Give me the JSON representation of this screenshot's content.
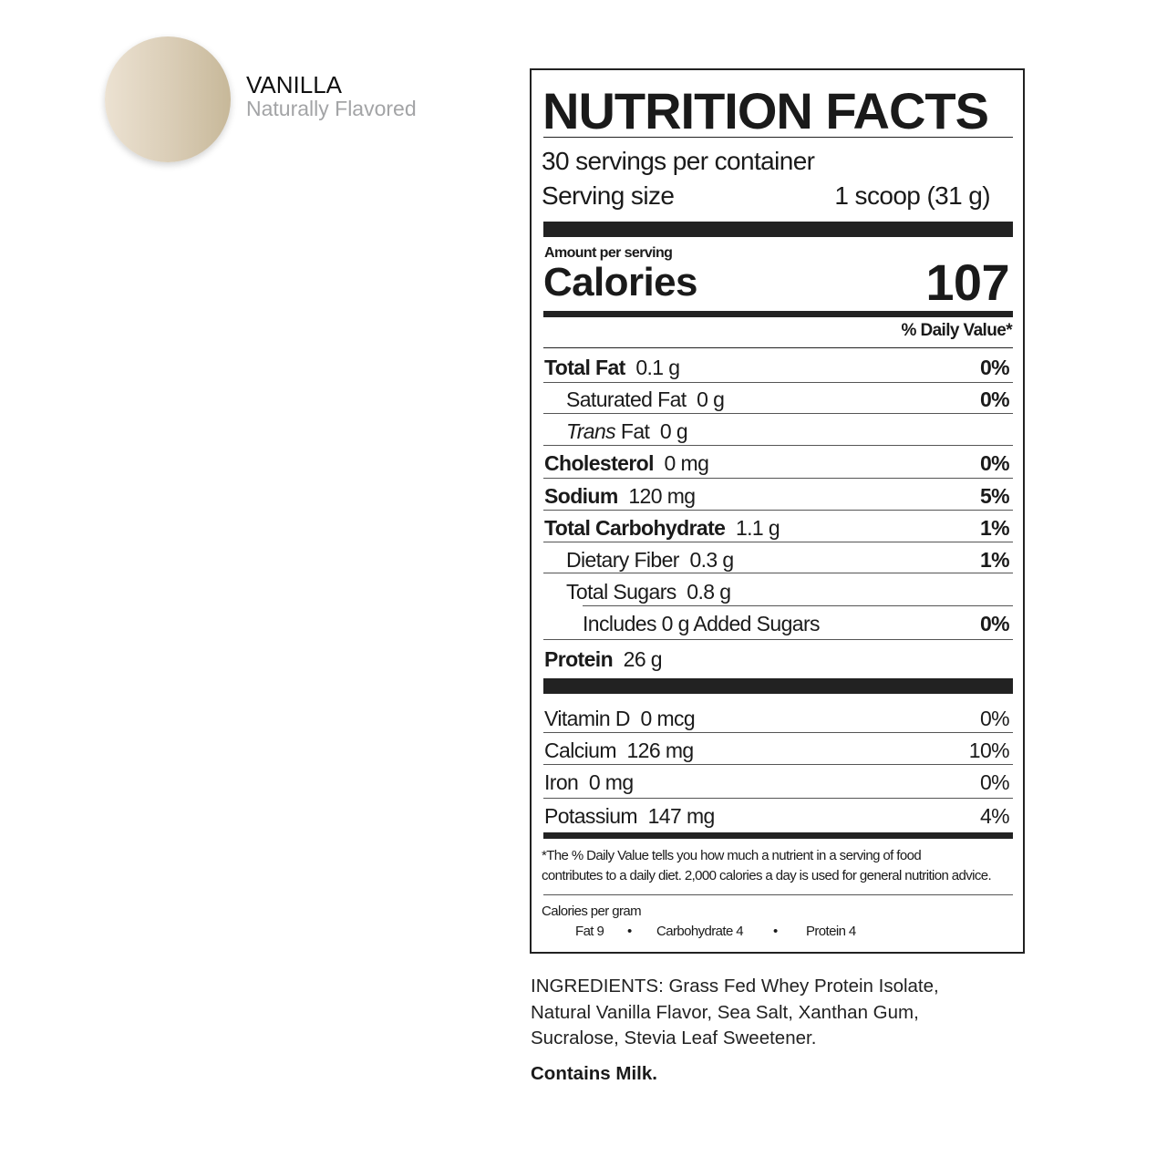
{
  "flavor": {
    "name": "VANILLA",
    "subtitle": "Naturally Flavored",
    "swatch_color": "#d9ccb5"
  },
  "label": {
    "title": "NUTRITION FACTS",
    "servings": "30 servings per container",
    "serving_size_label": "Serving size",
    "serving_size_value": "1 scoop (31 g)",
    "amount_per_serving": "Amount per serving",
    "calories_label": "Calories",
    "calories_value": "107",
    "dv_header": "% Daily Value*",
    "nutrients": [
      {
        "name": "Total Fat",
        "amount": "0.1 g",
        "dv": "0%",
        "bold": true,
        "indent": 0
      },
      {
        "name": "Saturated Fat",
        "amount": "0 g",
        "dv": "0%",
        "bold": false,
        "indent": 1
      },
      {
        "name": "Trans",
        "name_suffix": " Fat",
        "amount": "0 g",
        "dv": "",
        "bold": false,
        "indent": 1
      },
      {
        "name": "Cholesterol",
        "amount": "0 mg",
        "dv": "0%",
        "bold": true,
        "indent": 0
      },
      {
        "name": "Sodium",
        "amount": "120 mg",
        "dv": "5%",
        "bold": true,
        "indent": 0
      },
      {
        "name": "Total Carbohydrate",
        "amount": "1.1 g",
        "dv": "1%",
        "bold": true,
        "indent": 0
      },
      {
        "name": "Dietary Fiber",
        "amount": "0.3 g",
        "dv": "1%",
        "bold": false,
        "indent": 1
      },
      {
        "name": "Total Sugars",
        "amount": "0.8 g",
        "dv": "",
        "bold": false,
        "indent": 1
      },
      {
        "name": "Includes 0 g Added Sugars",
        "amount": "",
        "dv": "0%",
        "bold": false,
        "indent": 2
      },
      {
        "name": "Protein",
        "amount": "26 g",
        "dv": "",
        "bold": true,
        "indent": 0
      }
    ],
    "vitamins": [
      {
        "name": "Vitamin D",
        "amount": "0 mcg",
        "dv": "0%"
      },
      {
        "name": "Calcium",
        "amount": "126 mg",
        "dv": "10%"
      },
      {
        "name": "Iron",
        "amount": "0 mg",
        "dv": "0%"
      },
      {
        "name": "Potassium",
        "amount": "147 mg",
        "dv": "4%"
      }
    ],
    "footnote_line1": "*The % Daily Value tells you how much a nutrient in a serving of food",
    "footnote_line2": "contributes to a daily diet. 2,000 calories a day is used for general nutrition advice.",
    "cal_per_gram_label": "Calories per gram",
    "cal_per_gram": [
      "Fat 9",
      "Carbohydrate 4",
      "Protein 4"
    ],
    "bullet": "•"
  },
  "ingredients": {
    "line1": "INGREDIENTS: Grass Fed Whey Protein Isolate,",
    "line2": "Natural Vanilla Flavor, Sea Salt, Xanthan Gum,",
    "line3": "Sucralose, Stevia Leaf Sweetener.",
    "contains": "Contains Milk."
  }
}
